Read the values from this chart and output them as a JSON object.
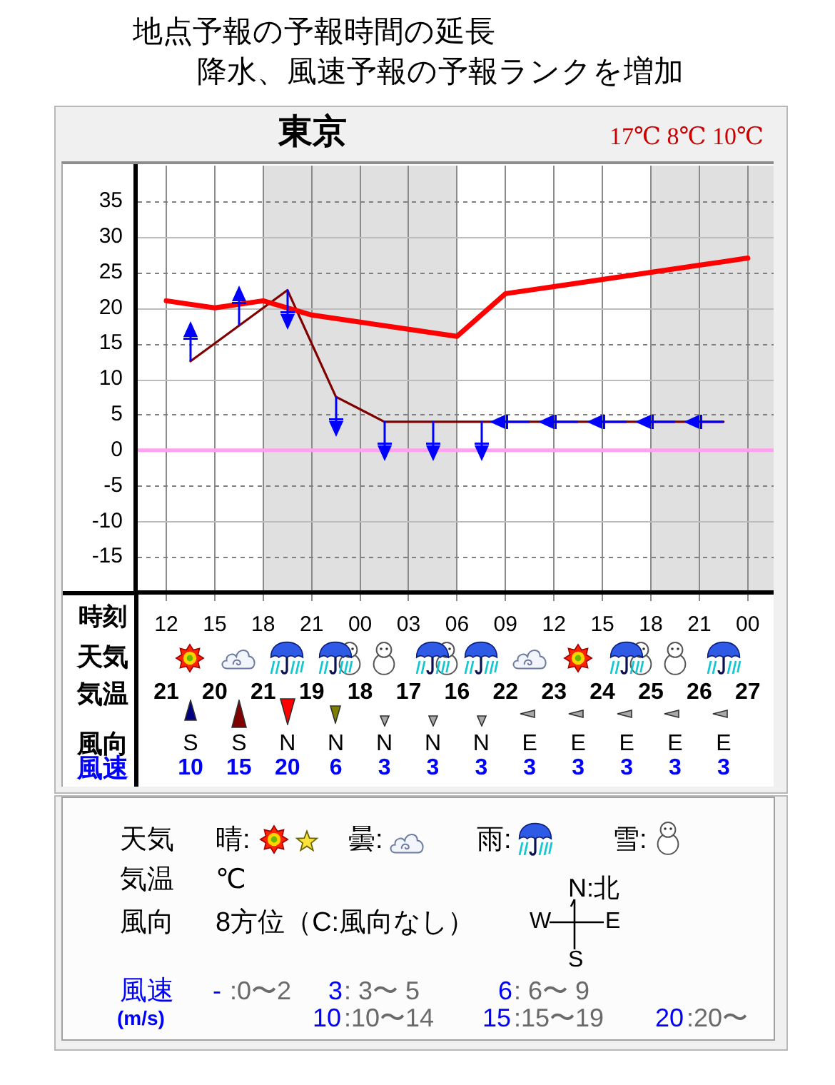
{
  "chart_data": [
    {
      "type": "line",
      "title": "地点予報の予報時間の延長",
      "subtitle": "降水、風速予報の予報ランクを増加",
      "xlabel": "時刻",
      "annotations": [
        "東京",
        "17℃ 8℃ 10℃",
        "天気",
        "気温",
        "風向",
        "風速",
        "21",
        "20",
        "21",
        "19",
        "18",
        "17",
        "16",
        "22",
        "23",
        "24",
        "25",
        "26",
        "27",
        "S",
        "S",
        "N",
        "N",
        "N",
        "N",
        "N",
        "E",
        "E",
        "E",
        "E",
        "E",
        "10",
        "15",
        "20",
        "6",
        "3",
        "3",
        "3",
        "3",
        "3",
        "3",
        "3",
        "3"
      ],
      "xlim": [
        10.1,
        49.6
      ],
      "xticks": [
        12,
        15,
        18,
        21,
        {
          "value": 24,
          "label": "00"
        },
        {
          "value": 27,
          "label": "03"
        },
        {
          "value": 30,
          "label": "06"
        },
        {
          "value": 33,
          "label": "09"
        },
        {
          "value": 36,
          "label": "12"
        },
        {
          "value": 39,
          "label": "15"
        },
        {
          "value": 42,
          "label": "18"
        },
        {
          "value": 45,
          "label": "21"
        },
        {
          "value": 48,
          "label": "00"
        }
      ],
      "ylim": [
        -20,
        40
      ],
      "yticks": [
        -15,
        -10,
        -5,
        0,
        5,
        10,
        15,
        20,
        25,
        30,
        35
      ],
      "grid": true,
      "bands": [
        {
          "axis": "x",
          "from": 18,
          "to": 30,
          "color": "#e0e0e0"
        },
        {
          "axis": "x",
          "from": 42,
          "to": 49.6,
          "color": "#e0e0e0"
        }
      ],
      "ref_lines": [
        {
          "axis": "y",
          "value": 0,
          "color": "#ffa0f0"
        }
      ],
      "series": [
        {
          "color": "#ff0000",
          "x": [
            12,
            15,
            18,
            21,
            24,
            27,
            30,
            33,
            36,
            39,
            42,
            45,
            48
          ],
          "values": [
            21,
            20,
            21,
            19,
            18,
            17,
            16,
            22,
            23,
            24,
            25,
            26,
            27
          ]
        },
        {
          "color": "#800000",
          "x": [
            13.5,
            16.5,
            19.5,
            22.5,
            25.5,
            28.5,
            31.5,
            34.5,
            37.5,
            40.5,
            43.5,
            46.5
          ],
          "values": [
            12.5,
            17.5,
            22.5,
            7.5,
            4,
            4,
            4,
            4,
            4,
            4,
            4,
            4
          ]
        }
      ]
    },
    {
      "type": "other",
      "annotations": [
        "天気",
        "晴:",
        "曇:",
        "雨:",
        "雪:",
        "気温",
        "℃",
        "風向",
        "8方位（C:風向なし）",
        "N:北",
        "W",
        "E",
        "S",
        "風速",
        "(m/s)",
        "-",
        ":0〜2",
        "3",
        ": 3〜 5",
        "6",
        ": 6〜 9",
        "10",
        ":10〜14",
        "15",
        ":15〜19",
        "20",
        ":20〜"
      ]
    }
  ]
}
